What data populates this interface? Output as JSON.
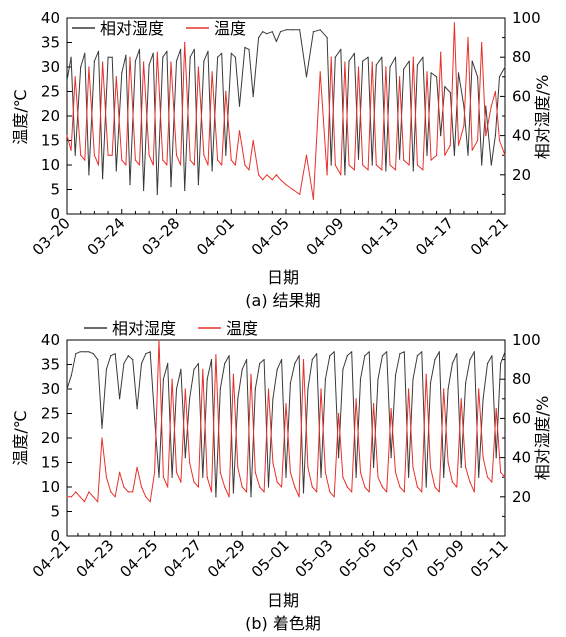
{
  "colors": {
    "humidity": "#3a3a3a",
    "temperature": "#e8302a"
  },
  "chart_data": [
    {
      "type": "line",
      "caption": "(a) 结果期",
      "xlabel": "日期",
      "ylabel_left": "温度/℃",
      "ylabel_right": "相对湿度/%",
      "ylim_left": [
        0,
        40
      ],
      "ylim_right": [
        0,
        100
      ],
      "xlim": [
        0,
        32
      ],
      "x_ticks": [
        "03–20",
        "03–24",
        "03–28",
        "04–01",
        "04–05",
        "04–09",
        "04–13",
        "04–17",
        "04–21"
      ],
      "grid": false,
      "legend_position": "top-left",
      "series": [
        {
          "name": "相对湿度",
          "axis": "right",
          "color": "#3a3a3a",
          "x": [
            0.0,
            0.3,
            0.6,
            1.0,
            1.3,
            1.6,
            2.0,
            2.3,
            2.6,
            3.0,
            3.3,
            3.6,
            4.0,
            4.3,
            4.6,
            5.0,
            5.3,
            5.6,
            6.0,
            6.3,
            6.6,
            7.0,
            7.3,
            7.6,
            8.0,
            8.3,
            8.6,
            9.0,
            9.3,
            9.6,
            10.0,
            10.3,
            10.6,
            11.0,
            11.3,
            11.6,
            12.0,
            12.3,
            12.6,
            13.0,
            13.3,
            13.6,
            14.0,
            14.3,
            14.6,
            15.0,
            15.3,
            15.6,
            16.0,
            16.5,
            17.0,
            17.5,
            18.0,
            18.5,
            19.0,
            19.3,
            19.6,
            20.0,
            20.3,
            20.6,
            21.0,
            21.3,
            21.6,
            22.0,
            22.3,
            22.6,
            23.0,
            23.3,
            23.6,
            24.0,
            24.3,
            24.6,
            25.0,
            25.3,
            25.6,
            26.0,
            26.3,
            26.6,
            27.0,
            27.3,
            27.6,
            28.0,
            28.3,
            28.6,
            29.0,
            29.3,
            29.6,
            30.0,
            30.3,
            30.6,
            31.0,
            31.3,
            31.6,
            32.0
          ],
          "values": [
            68,
            80,
            30,
            75,
            82,
            20,
            78,
            83,
            18,
            80,
            80,
            22,
            72,
            81,
            15,
            78,
            84,
            12,
            76,
            82,
            10,
            80,
            83,
            14,
            78,
            84,
            12,
            80,
            84,
            15,
            78,
            83,
            22,
            80,
            82,
            30,
            82,
            80,
            55,
            85,
            84,
            60,
            90,
            93,
            92,
            93,
            88,
            93,
            94,
            94,
            94,
            70,
            93,
            94,
            90,
            25,
            80,
            84,
            20,
            78,
            82,
            28,
            78,
            80,
            25,
            76,
            80,
            22,
            75,
            80,
            28,
            74,
            78,
            22,
            76,
            80,
            30,
            72,
            70,
            40,
            65,
            62,
            30,
            72,
            55,
            30,
            78,
            70,
            25,
            55,
            25,
            40,
            70,
            75
          ]
        },
        {
          "name": "温度",
          "axis": "left",
          "color": "#e8302a",
          "x": [
            0.0,
            0.3,
            0.6,
            1.0,
            1.3,
            1.6,
            2.0,
            2.3,
            2.6,
            3.0,
            3.3,
            3.6,
            4.0,
            4.3,
            4.6,
            5.0,
            5.3,
            5.6,
            6.0,
            6.3,
            6.6,
            7.0,
            7.3,
            7.6,
            8.0,
            8.3,
            8.6,
            9.0,
            9.3,
            9.6,
            10.0,
            10.3,
            10.6,
            11.0,
            11.3,
            11.6,
            12.0,
            12.3,
            12.6,
            13.0,
            13.3,
            13.6,
            14.0,
            14.3,
            14.6,
            15.0,
            15.3,
            15.6,
            16.0,
            16.5,
            17.0,
            17.5,
            18.0,
            18.5,
            19.0,
            19.3,
            19.6,
            20.0,
            20.3,
            20.6,
            21.0,
            21.3,
            21.6,
            22.0,
            22.3,
            22.6,
            23.0,
            23.3,
            23.6,
            24.0,
            24.3,
            24.6,
            25.0,
            25.3,
            25.6,
            26.0,
            26.3,
            26.6,
            27.0,
            27.3,
            27.6,
            28.0,
            28.3,
            28.6,
            29.0,
            29.3,
            29.6,
            30.0,
            30.3,
            30.6,
            31.0,
            31.3,
            31.6,
            32.0
          ],
          "values": [
            16,
            13,
            28,
            12,
            11,
            30,
            12,
            10,
            31,
            12,
            12,
            28,
            11,
            10,
            32,
            11,
            10,
            31,
            12,
            10,
            33,
            11,
            10,
            31,
            12,
            10,
            35,
            11,
            10,
            30,
            12,
            10,
            29,
            11,
            10,
            25,
            11,
            10,
            17,
            10,
            9,
            15,
            8,
            7,
            8,
            7,
            8,
            7,
            6,
            5,
            4,
            12,
            3,
            29,
            8,
            32,
            10,
            8,
            31,
            10,
            9,
            30,
            10,
            9,
            31,
            10,
            9,
            30,
            10,
            9,
            28,
            11,
            10,
            32,
            10,
            9,
            29,
            11,
            12,
            33,
            12,
            14,
            39,
            14,
            18,
            36,
            13,
            15,
            35,
            16,
            22,
            25,
            15,
            12
          ]
        }
      ]
    },
    {
      "type": "line",
      "caption": "(b) 着色期",
      "xlabel": "日期",
      "ylabel_left": "温度/℃",
      "ylabel_right": "相对湿度/%",
      "ylim_left": [
        0,
        40
      ],
      "ylim_right": [
        0,
        100
      ],
      "xlim": [
        0,
        20
      ],
      "x_ticks": [
        "04–21",
        "04–23",
        "04–25",
        "04–27",
        "04–29",
        "05–01",
        "05–03",
        "05–05",
        "05–07",
        "05–09",
        "05–11"
      ],
      "grid": false,
      "legend_position": "top-left",
      "series": [
        {
          "name": "相对湿度",
          "axis": "right",
          "color": "#3a3a3a",
          "x": [
            0.0,
            0.2,
            0.4,
            0.6,
            0.8,
            1.0,
            1.2,
            1.4,
            1.6,
            1.8,
            2.0,
            2.2,
            2.4,
            2.6,
            2.8,
            3.0,
            3.2,
            3.4,
            3.6,
            3.8,
            4.0,
            4.2,
            4.4,
            4.6,
            4.8,
            5.0,
            5.2,
            5.4,
            5.6,
            5.8,
            6.0,
            6.2,
            6.4,
            6.6,
            6.8,
            7.0,
            7.2,
            7.4,
            7.6,
            7.8,
            8.0,
            8.2,
            8.4,
            8.6,
            8.8,
            9.0,
            9.2,
            9.4,
            9.6,
            9.8,
            10.0,
            10.2,
            10.4,
            10.6,
            10.8,
            11.0,
            11.2,
            11.4,
            11.6,
            11.8,
            12.0,
            12.2,
            12.4,
            12.6,
            12.8,
            13.0,
            13.2,
            13.4,
            13.6,
            13.8,
            14.0,
            14.2,
            14.4,
            14.6,
            14.8,
            15.0,
            15.2,
            15.4,
            15.6,
            15.8,
            16.0,
            16.2,
            16.4,
            16.6,
            16.8,
            17.0,
            17.2,
            17.4,
            17.6,
            17.8,
            18.0,
            18.2,
            18.4,
            18.6,
            18.8,
            19.0,
            19.2,
            19.4,
            19.6,
            19.8,
            20.0
          ],
          "values": [
            75,
            82,
            93,
            94,
            94,
            94,
            93,
            90,
            55,
            85,
            92,
            93,
            70,
            88,
            92,
            90,
            65,
            88,
            93,
            94,
            60,
            30,
            80,
            88,
            30,
            75,
            85,
            40,
            70,
            85,
            88,
            30,
            80,
            90,
            20,
            75,
            88,
            92,
            22,
            70,
            85,
            90,
            20,
            75,
            88,
            90,
            25,
            70,
            85,
            90,
            30,
            78,
            88,
            92,
            22,
            75,
            90,
            93,
            30,
            80,
            92,
            94,
            40,
            85,
            92,
            94,
            30,
            80,
            92,
            94,
            35,
            80,
            92,
            94,
            40,
            82,
            93,
            94,
            30,
            80,
            92,
            94,
            25,
            78,
            90,
            94,
            30,
            75,
            88,
            93,
            35,
            78,
            90,
            94,
            30,
            70,
            88,
            92,
            40,
            88,
            94
          ]
        },
        {
          "name": "温度",
          "axis": "left",
          "color": "#e8302a",
          "x": [
            0.0,
            0.2,
            0.4,
            0.6,
            0.8,
            1.0,
            1.2,
            1.4,
            1.6,
            1.8,
            2.0,
            2.2,
            2.4,
            2.6,
            2.8,
            3.0,
            3.2,
            3.4,
            3.6,
            3.8,
            4.0,
            4.2,
            4.4,
            4.6,
            4.8,
            5.0,
            5.2,
            5.4,
            5.6,
            5.8,
            6.0,
            6.2,
            6.4,
            6.6,
            6.8,
            7.0,
            7.2,
            7.4,
            7.6,
            7.8,
            8.0,
            8.2,
            8.4,
            8.6,
            8.8,
            9.0,
            9.2,
            9.4,
            9.6,
            9.8,
            10.0,
            10.2,
            10.4,
            10.6,
            10.8,
            11.0,
            11.2,
            11.4,
            11.6,
            11.8,
            12.0,
            12.2,
            12.4,
            12.6,
            12.8,
            13.0,
            13.2,
            13.4,
            13.6,
            13.8,
            14.0,
            14.2,
            14.4,
            14.6,
            14.8,
            15.0,
            15.2,
            15.4,
            15.6,
            15.8,
            16.0,
            16.2,
            16.4,
            16.6,
            16.8,
            17.0,
            17.2,
            17.4,
            17.6,
            17.8,
            18.0,
            18.2,
            18.4,
            18.6,
            18.8,
            19.0,
            19.2,
            19.4,
            19.6,
            19.8,
            20.0
          ],
          "values": [
            8,
            8,
            9,
            8,
            7,
            9,
            8,
            7,
            20,
            12,
            9,
            8,
            13,
            10,
            9,
            9,
            14,
            10,
            8,
            7,
            13,
            40,
            12,
            10,
            32,
            13,
            11,
            30,
            15,
            11,
            10,
            34,
            12,
            9,
            37,
            13,
            10,
            8,
            33,
            14,
            10,
            9,
            33,
            13,
            10,
            9,
            30,
            15,
            11,
            10,
            27,
            13,
            10,
            8,
            36,
            14,
            10,
            9,
            30,
            13,
            9,
            8,
            25,
            12,
            10,
            9,
            28,
            13,
            10,
            9,
            27,
            12,
            10,
            9,
            26,
            13,
            10,
            9,
            30,
            14,
            10,
            9,
            33,
            14,
            10,
            9,
            30,
            15,
            11,
            10,
            28,
            14,
            11,
            9,
            30,
            16,
            12,
            11,
            26,
            13,
            12
          ]
        }
      ]
    }
  ]
}
